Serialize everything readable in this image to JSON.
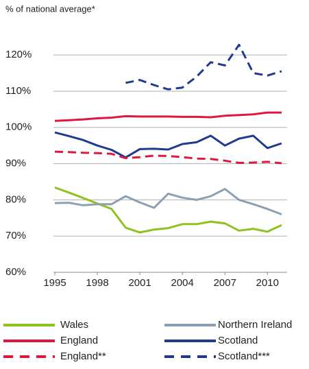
{
  "chart_data": {
    "type": "line",
    "title": "% of national average*",
    "x": [
      1995,
      1996,
      1997,
      1998,
      1999,
      2000,
      2001,
      2002,
      2003,
      2004,
      2005,
      2006,
      2007,
      2008,
      2009,
      2010,
      2011
    ],
    "xlim": [
      1995,
      2011
    ],
    "xticks": [
      1995,
      1998,
      2001,
      2004,
      2007,
      2010
    ],
    "ylim": [
      60,
      124
    ],
    "yticks": [
      {
        "value": 60,
        "label": "60%"
      },
      {
        "value": 70,
        "label": "70%"
      },
      {
        "value": 80,
        "label": "80%"
      },
      {
        "value": 90,
        "label": "90%"
      },
      {
        "value": 100,
        "label": "100%"
      },
      {
        "value": 110,
        "label": "110%"
      },
      {
        "value": 120,
        "label": "120%"
      }
    ],
    "grid": true,
    "series": [
      {
        "name": "Wales",
        "color": "#8dc21f",
        "dashed": false,
        "values": [
          83.4,
          82,
          80.5,
          79,
          77.5,
          72.3,
          71,
          71.8,
          72.2,
          73.3,
          73.3,
          74,
          73.5,
          71.5,
          72,
          71.2,
          73
        ]
      },
      {
        "name": "Northern Ireland",
        "color": "#8c9fb3",
        "dashed": false,
        "values": [
          79.1,
          79.2,
          78.5,
          78.8,
          78.8,
          81,
          79.3,
          77.8,
          81.7,
          80.6,
          80,
          81,
          83,
          80,
          78.8,
          77.5,
          76
        ]
      },
      {
        "name": "England",
        "color": "#e0173f",
        "dashed": false,
        "values": [
          101.8,
          102,
          102.2,
          102.5,
          102.7,
          103.1,
          103,
          103,
          103,
          102.9,
          102.9,
          102.8,
          103.2,
          103.4,
          103.6,
          104.1,
          104.1
        ]
      },
      {
        "name": "Scotland",
        "color": "#1f3a8f",
        "dashed": false,
        "values": [
          98.6,
          97.6,
          96.5,
          95,
          93.8,
          91.7,
          94,
          94.1,
          93.9,
          95.4,
          95.9,
          97.7,
          95,
          96.9,
          97.7,
          94.3,
          95.6
        ]
      },
      {
        "name": "England**",
        "color": "#e0173f",
        "dashed": true,
        "values": [
          93.3,
          93.2,
          93,
          92.9,
          92.7,
          91.5,
          91.8,
          92.2,
          92.1,
          91.8,
          91.4,
          91.3,
          90.8,
          90.2,
          90.3,
          90.5,
          90.1
        ]
      },
      {
        "name": "Scotland***",
        "color": "#1f3a8f",
        "dashed": true,
        "values": [
          null,
          null,
          null,
          null,
          null,
          112.3,
          113.1,
          111.7,
          110.5,
          111,
          114,
          118,
          117.1,
          122.8,
          115,
          114.3,
          115.5
        ]
      }
    ]
  }
}
